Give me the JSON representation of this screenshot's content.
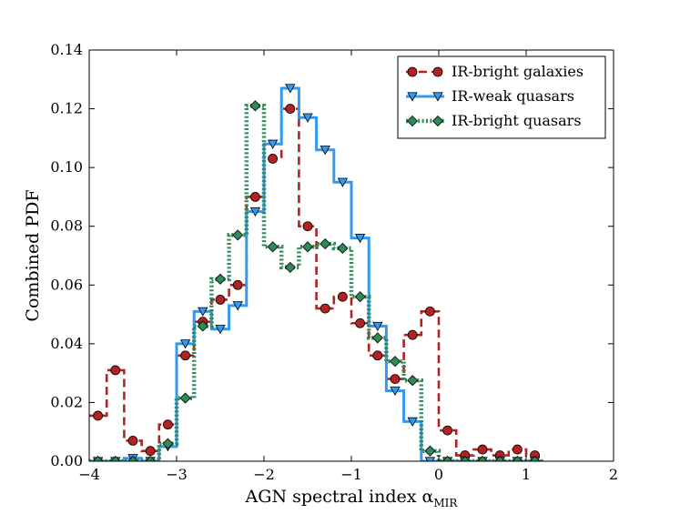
{
  "chart_data": {
    "type": "line",
    "subtype": "step",
    "xlabel": "AGN spectral index α",
    "xlabel_subscript": "MIR",
    "ylabel": "Combined PDF",
    "xlim": [
      -4,
      2
    ],
    "ylim": [
      0,
      0.14
    ],
    "xticks": [
      -4,
      -3,
      -2,
      -1,
      0,
      1,
      2
    ],
    "xtick_labels": [
      "−4",
      "−3",
      "−2",
      "−1",
      "0",
      "1",
      "2"
    ],
    "yticks": [
      0.0,
      0.02,
      0.04,
      0.06,
      0.08,
      0.1,
      0.12,
      0.14
    ],
    "ytick_labels": [
      "0.00",
      "0.02",
      "0.04",
      "0.06",
      "0.08",
      "0.10",
      "0.12",
      "0.14"
    ],
    "grid": false,
    "legend_position": "top-right",
    "x": [
      -3.9,
      -3.7,
      -3.5,
      -3.3,
      -3.1,
      -2.9,
      -2.7,
      -2.5,
      -2.3,
      -2.1,
      -1.9,
      -1.7,
      -1.5,
      -1.3,
      -1.1,
      -0.9,
      -0.7,
      -0.5,
      -0.3,
      -0.1,
      0.1,
      0.3,
      0.5,
      0.7,
      0.9,
      1.1
    ],
    "series": [
      {
        "name": "IR-bright galaxies",
        "color": "#b22222",
        "line_style": "dashed",
        "marker": "circle",
        "marker_color": "#b22222",
        "values": [
          0.0155,
          0.031,
          0.007,
          0.0035,
          0.0125,
          0.036,
          0.0475,
          0.055,
          0.06,
          0.09,
          0.103,
          0.12,
          0.08,
          0.052,
          0.056,
          0.047,
          0.036,
          0.028,
          0.043,
          0.051,
          0.0105,
          0.002,
          0.004,
          0.002,
          0.004,
          0.002
        ]
      },
      {
        "name": "IR-weak quasars",
        "color": "#3399ee",
        "line_style": "solid",
        "marker": "triangle-down",
        "marker_color": "#3399ee",
        "values": [
          0.0,
          0.0,
          0.001,
          0.0,
          0.005,
          0.04,
          0.051,
          0.045,
          0.053,
          0.085,
          0.108,
          0.127,
          0.117,
          0.106,
          0.095,
          0.076,
          0.046,
          0.024,
          0.0135,
          0.0,
          0.0,
          0.0,
          0.0,
          0.0,
          0.0,
          0.0
        ]
      },
      {
        "name": "IR-bright quasars",
        "color": "#2e8b57",
        "line_style": "dotted",
        "marker": "diamond",
        "marker_color": "#2e8b57",
        "values": [
          0.0,
          0.0,
          0.0,
          0.0,
          0.006,
          0.0215,
          0.046,
          0.062,
          0.077,
          0.121,
          0.073,
          0.066,
          0.073,
          0.074,
          0.0725,
          0.056,
          0.042,
          0.034,
          0.0275,
          0.0035,
          0.0,
          0.0,
          0.0,
          0.0,
          0.0,
          0.0
        ]
      }
    ]
  }
}
